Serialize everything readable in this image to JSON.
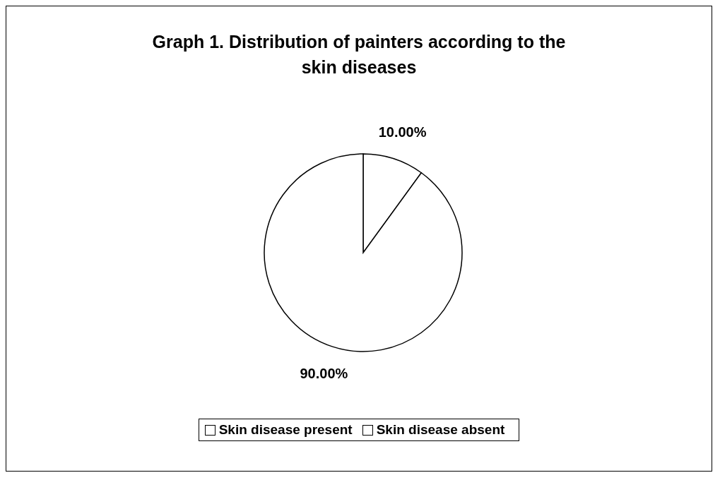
{
  "chart_data": {
    "type": "pie",
    "title": "Graph 1. Distribution of painters according to the skin diseases",
    "categories": [
      "Skin disease present",
      "Skin disease absent"
    ],
    "values": [
      10,
      90
    ],
    "colors": [
      "#ffffff",
      "#ffffff"
    ],
    "value_labels": [
      "10.00%",
      "90.00%"
    ],
    "legend": "bottom"
  }
}
